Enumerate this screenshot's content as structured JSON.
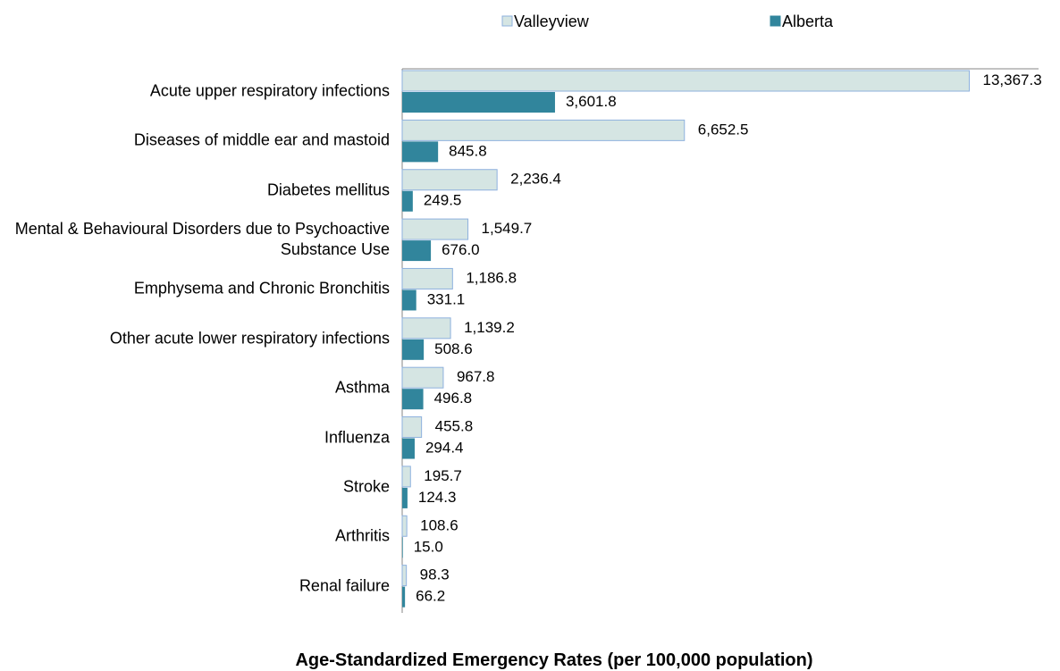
{
  "chart_data": {
    "type": "bar",
    "orientation": "horizontal",
    "title": "Age-Standardized Emergency Rates (per 100,000 population)",
    "categories": [
      "Acute upper respiratory infections",
      "Diseases of middle ear and mastoid",
      "Diabetes mellitus",
      "Mental & Behavioural Disorders due to Psychoactive Substance Use",
      "Emphysema and Chronic Bronchitis",
      "Other acute lower respiratory infections",
      "Asthma",
      "Influenza",
      "Stroke",
      "Arthritis",
      "Renal failure"
    ],
    "series": [
      {
        "name": "Valleyview",
        "color": "#d5e5e3",
        "stroke": "#8eb1de",
        "values": [
          13367.3,
          6652.5,
          2236.4,
          1549.7,
          1186.8,
          1139.2,
          967.8,
          455.8,
          195.7,
          108.6,
          98.3
        ],
        "value_labels": [
          "13,367.3",
          "6,652.5",
          "2,236.4",
          "1,549.7",
          "1,186.8",
          "1,139.2",
          "967.8",
          "455.8",
          "195.7",
          "108.6",
          "98.3"
        ]
      },
      {
        "name": "Alberta",
        "color": "#31859c",
        "values": [
          3601.8,
          845.8,
          249.5,
          676.0,
          331.1,
          508.6,
          496.8,
          294.4,
          124.3,
          15.0,
          66.2
        ],
        "value_labels": [
          "3,601.8",
          "845.8",
          "249.5",
          "676.0",
          "331.1",
          "508.6",
          "496.8",
          "294.4",
          "124.3",
          "15.0",
          "66.2"
        ]
      }
    ],
    "xlim": [
      0,
      15000
    ],
    "legend": "top"
  }
}
